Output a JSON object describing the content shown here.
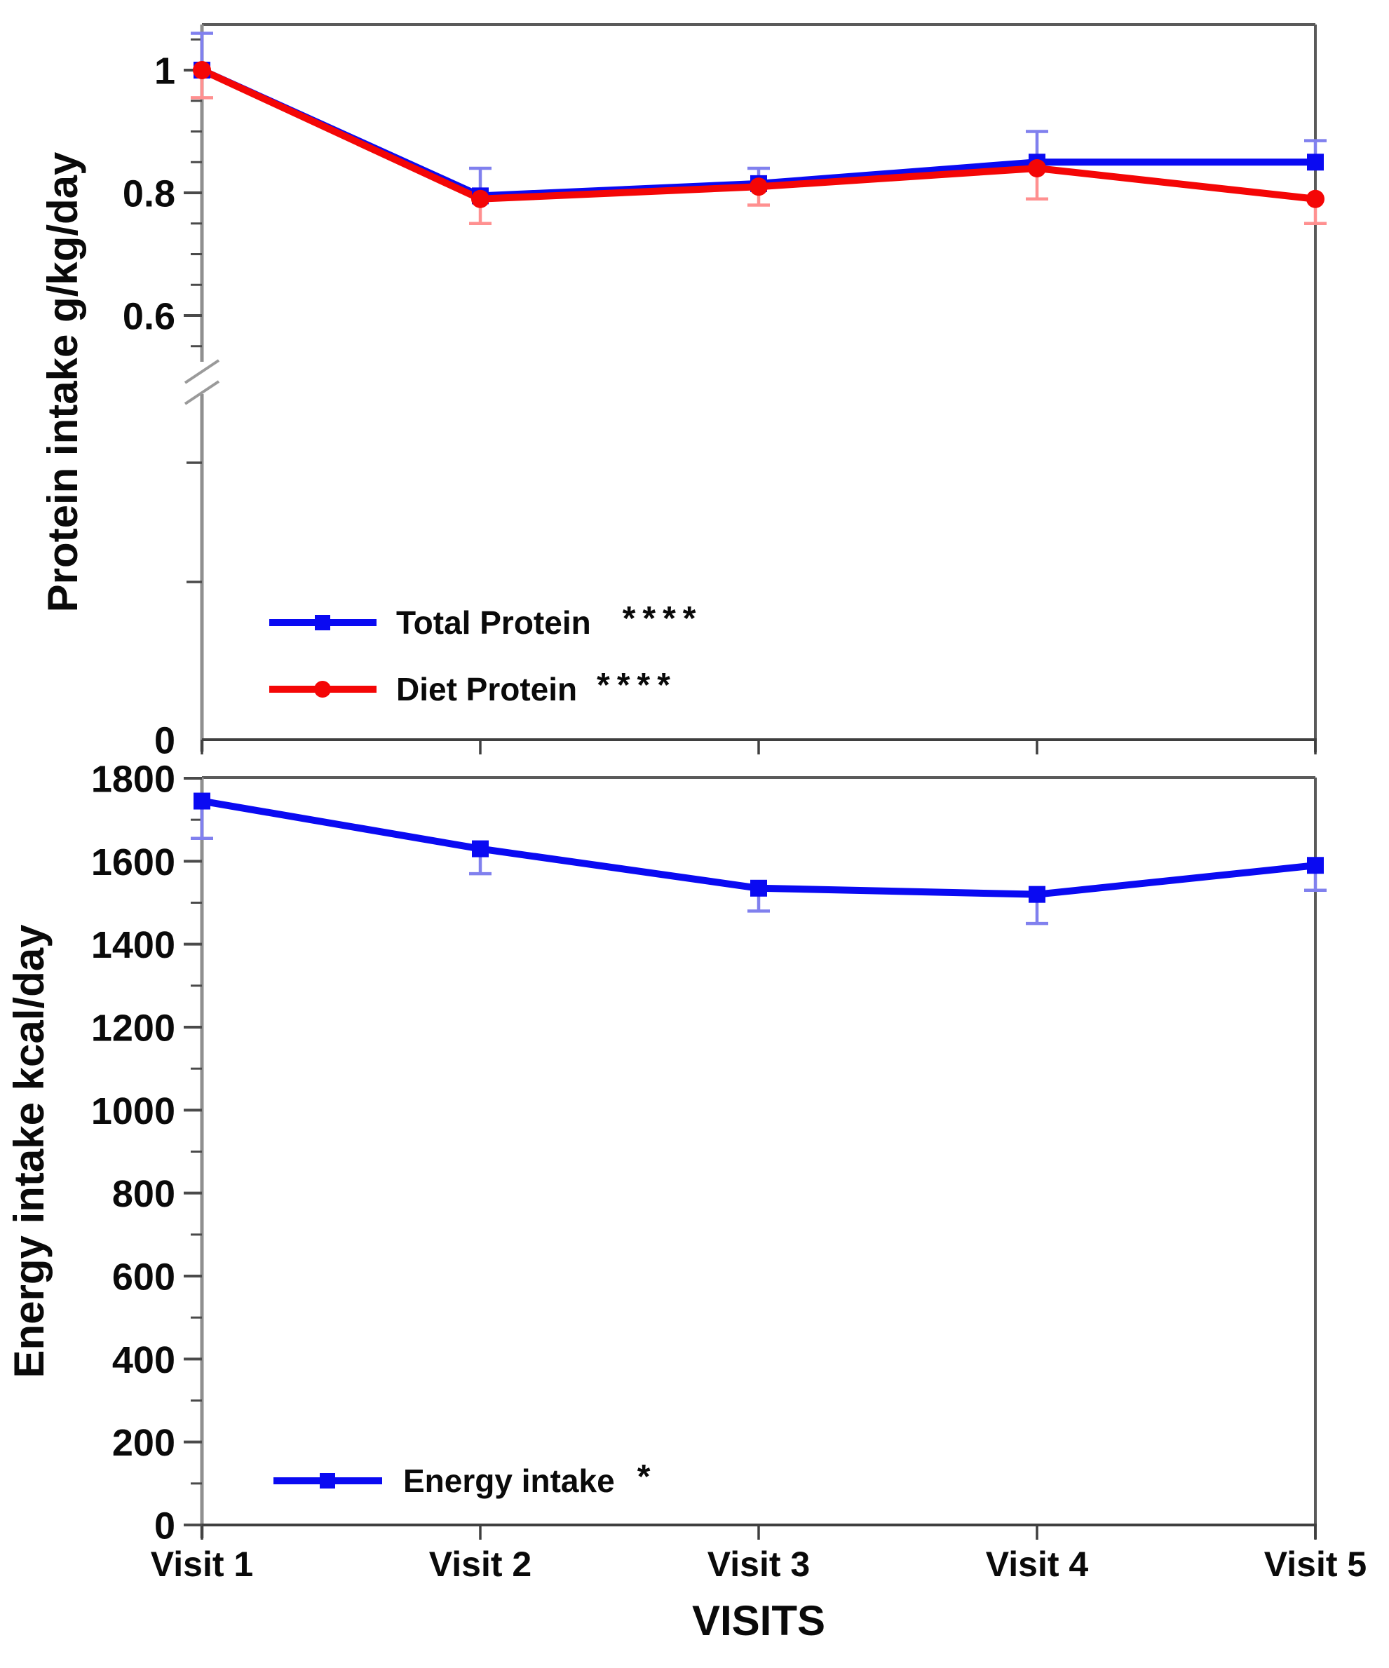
{
  "figure": {
    "x_axis_title": "VISITS",
    "categories": [
      "Visit 1",
      "Visit 2",
      "Visit 3",
      "Visit 4",
      "Visit 5"
    ],
    "background": "#ffffff"
  },
  "colors": {
    "blue": "#0a0af2",
    "red": "#f40606",
    "blue_error": "#8080ee",
    "red_error": "#ff9090",
    "axis_gray": "#8f8f8f",
    "axis_dark": "#3f3f3f",
    "frame": "#5a5a5a",
    "tick": "#4a4a4a",
    "break_mark": "#9a9a9a",
    "text": "#0a0a0a"
  },
  "chart_data": [
    {
      "type": "line",
      "title": "",
      "ylabel": "Protein intake g/kg/day",
      "xlabel": "",
      "categories": [
        "Visit 1",
        "Visit 2",
        "Visit 3",
        "Visit 4",
        "Visit 5"
      ],
      "ylim": [
        0,
        1.07
      ],
      "grid": false,
      "axis_break": {
        "present": true,
        "between": [
          0.52,
          0.55
        ]
      },
      "y_major_ticks": [
        1,
        0.8,
        0.6
      ],
      "y_major_tick_labels": [
        "1",
        "0.8",
        "0.6"
      ],
      "y_minor_ticks": [
        1.05,
        0.95,
        0.9,
        0.85,
        0.75,
        0.7,
        0.65,
        0.55
      ],
      "origin_tick_label": "0",
      "legend_position": "lower-left-inside",
      "series": [
        {
          "name": "Total Protein",
          "significance": "****",
          "color": "blue",
          "marker": "square",
          "values": [
            1.0,
            0.795,
            0.815,
            0.85,
            0.85
          ],
          "error_direction": "up",
          "errors": [
            0.06,
            0.045,
            0.025,
            0.05,
            0.035
          ]
        },
        {
          "name": "Diet Protein",
          "significance": "****",
          "color": "red",
          "marker": "circle",
          "values": [
            1.0,
            0.79,
            0.81,
            0.84,
            0.79
          ],
          "error_direction": "down",
          "errors": [
            0.045,
            0.04,
            0.03,
            0.05,
            0.04
          ]
        }
      ]
    },
    {
      "type": "line",
      "title": "",
      "ylabel": "Energy intake kcal/day",
      "xlabel": "VISITS",
      "categories": [
        "Visit 1",
        "Visit 2",
        "Visit 3",
        "Visit 4",
        "Visit 5"
      ],
      "ylim": [
        0,
        1800
      ],
      "grid": false,
      "y_major_tick_values": [
        1800,
        1600,
        1400,
        1200,
        1000,
        800,
        600,
        400,
        200,
        0
      ],
      "y_major_tick_labels": [
        "1800",
        "1600",
        "1400",
        "1200",
        "1000",
        "800",
        "600",
        "400",
        "200",
        "0"
      ],
      "y_minor_tick_step": 100,
      "legend_position": "lower-left-inside",
      "series": [
        {
          "name": "Energy intake",
          "significance": "*",
          "color": "blue",
          "marker": "square",
          "values": [
            1745,
            1630,
            1535,
            1520,
            1590
          ],
          "error_direction": "down",
          "errors": [
            90,
            60,
            55,
            70,
            60
          ]
        }
      ]
    }
  ]
}
